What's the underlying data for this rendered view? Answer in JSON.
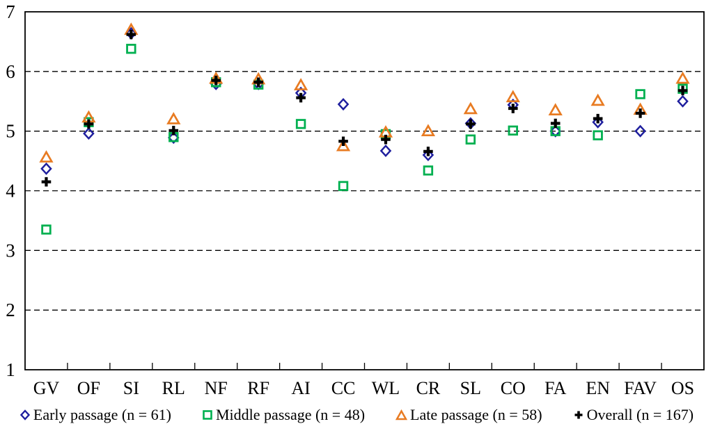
{
  "chart_data": {
    "type": "scatter",
    "title": "",
    "xlabel": "",
    "ylabel": "",
    "ylim": [
      1,
      7
    ],
    "yticks": [
      1,
      2,
      3,
      4,
      5,
      6,
      7
    ],
    "grid": "horizontal-dashed",
    "legend_position": "bottom",
    "categories": [
      "GV",
      "OF",
      "SI",
      "RL",
      "NF",
      "RF",
      "AI",
      "CC",
      "WL",
      "CR",
      "SL",
      "CO",
      "FA",
      "EN",
      "FAV",
      "OS"
    ],
    "series": [
      {
        "name": "Early passage (n = 61)",
        "marker": "diamond",
        "color": "#1F1F9E",
        "values": [
          4.37,
          4.96,
          6.64,
          4.89,
          5.79,
          5.79,
          5.64,
          5.45,
          4.67,
          4.6,
          5.13,
          5.44,
          5.0,
          5.15,
          5.0,
          5.5
        ]
      },
      {
        "name": "Middle passage (n = 48)",
        "marker": "square",
        "color": "#00B050",
        "values": [
          3.35,
          5.15,
          6.38,
          4.9,
          5.82,
          5.78,
          5.12,
          4.08,
          4.95,
          4.34,
          4.86,
          5.01,
          5.0,
          4.93,
          5.62,
          5.71
        ]
      },
      {
        "name": "Late passage (n = 58)",
        "marker": "triangle",
        "color": "#E87B22",
        "values": [
          4.56,
          5.23,
          6.7,
          5.2,
          5.88,
          5.87,
          5.77,
          4.75,
          4.98,
          5.0,
          5.37,
          5.57,
          5.35,
          5.51,
          5.36,
          5.88
        ]
      },
      {
        "name": "Overall (n = 167)",
        "marker": "plus",
        "color": "#000000",
        "values": [
          4.15,
          5.12,
          6.62,
          5.01,
          5.85,
          5.82,
          5.56,
          4.83,
          4.86,
          4.66,
          5.12,
          5.38,
          5.13,
          5.21,
          5.3,
          5.68
        ]
      }
    ],
    "axis_color": "#000000",
    "gridline_color": "#000000"
  }
}
